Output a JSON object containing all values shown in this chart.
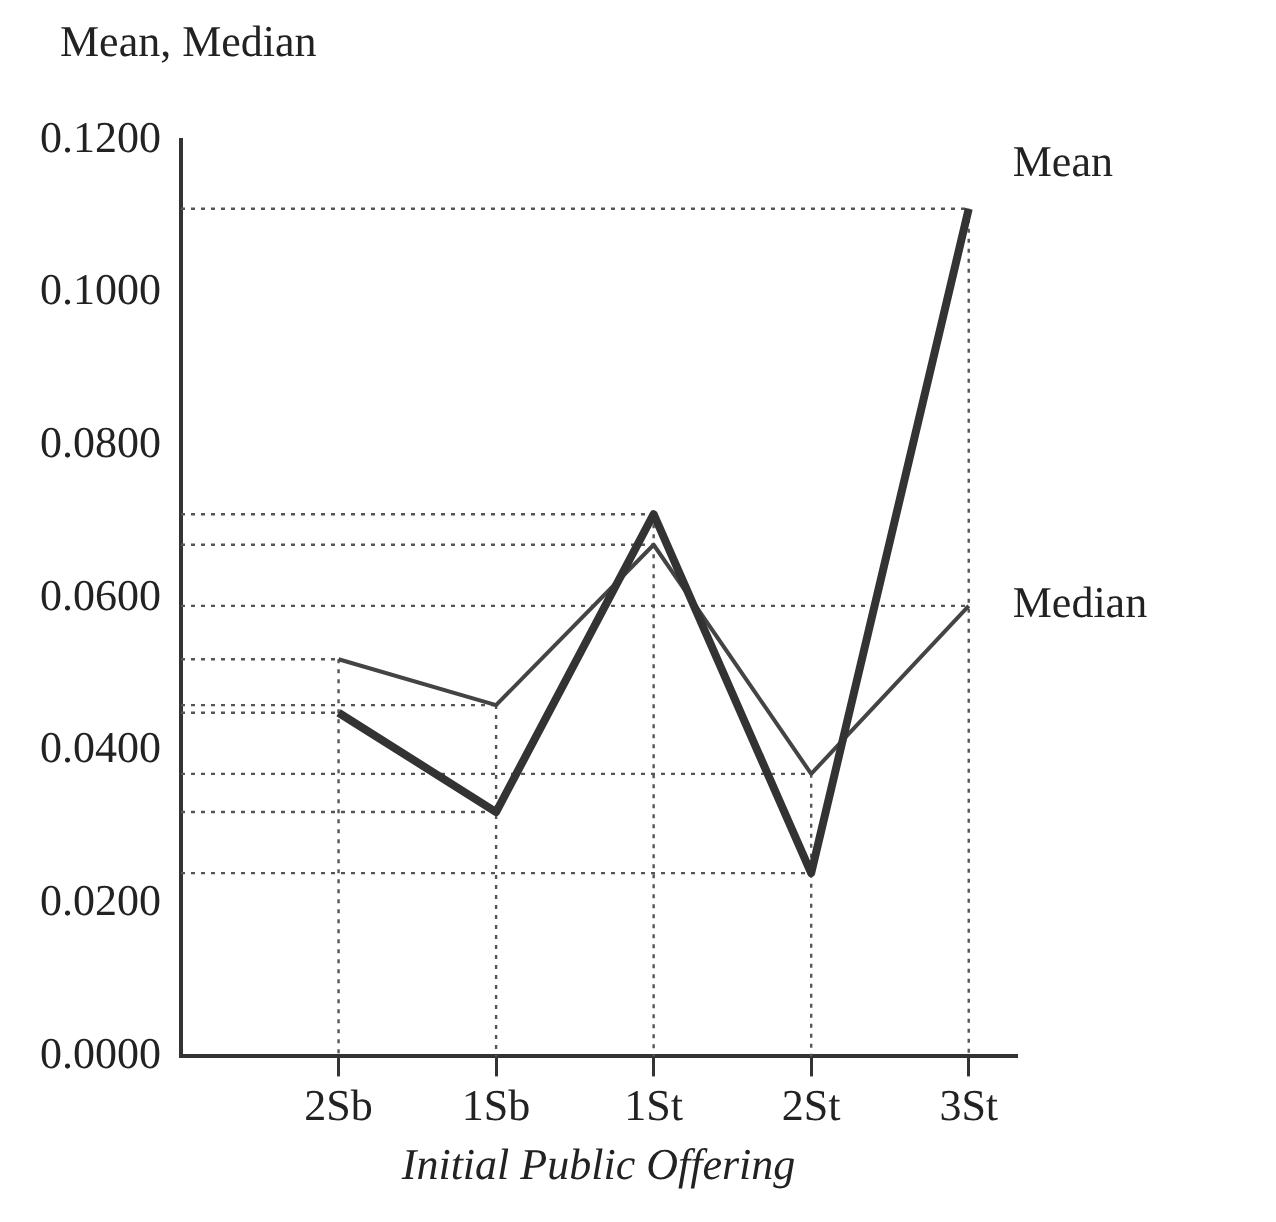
{
  "chart_data": {
    "type": "line",
    "ylabel": "Mean, Median",
    "xlabel": "Initial Public Offering",
    "categories": [
      "2Sb",
      "1Sb",
      "1St",
      "2St",
      "3St"
    ],
    "series": [
      {
        "name": "Mean",
        "color": "#333333",
        "values": [
          0.045,
          0.032,
          0.071,
          0.024,
          0.111
        ]
      },
      {
        "name": "Median",
        "color": "#444444",
        "values": [
          0.052,
          0.046,
          0.067,
          0.037,
          0.059
        ]
      }
    ],
    "ylim": [
      0,
      0.12
    ],
    "yticks": [
      {
        "value": 0,
        "label": "0.0000"
      },
      {
        "value": 0.02,
        "label": "0.0200"
      },
      {
        "value": 0.04,
        "label": "0.0400"
      },
      {
        "value": 0.06,
        "label": "0.0600"
      },
      {
        "value": 0.08,
        "label": "0.0800"
      },
      {
        "value": 0.1,
        "label": "0.1000"
      },
      {
        "value": 0.12,
        "label": "0.1200"
      }
    ],
    "ref_lines": [
      {
        "axis": "y",
        "value": 0.111,
        "line_style": "dotted",
        "color": "#555555"
      },
      {
        "axis": "y",
        "value": 0.071,
        "line_style": "dotted",
        "color": "#555555"
      },
      {
        "axis": "y",
        "value": 0.067,
        "line_style": "dotted",
        "color": "#555555"
      },
      {
        "axis": "y",
        "value": 0.059,
        "line_style": "dotted",
        "color": "#555555"
      },
      {
        "axis": "y",
        "value": 0.052,
        "line_style": "dotted",
        "color": "#555555"
      },
      {
        "axis": "y",
        "value": 0.046,
        "line_style": "dotted",
        "color": "#555555"
      },
      {
        "axis": "y",
        "value": 0.045,
        "line_style": "dotted",
        "color": "#555555"
      },
      {
        "axis": "y",
        "value": 0.037,
        "line_style": "dotted",
        "color": "#555555"
      },
      {
        "axis": "y",
        "value": 0.032,
        "line_style": "dotted",
        "color": "#555555"
      },
      {
        "axis": "y",
        "value": 0.024,
        "line_style": "dotted",
        "color": "#555555"
      },
      {
        "axis": "x",
        "value": "2Sb",
        "line_style": "dotted",
        "color": "#555555"
      },
      {
        "axis": "x",
        "value": "1Sb",
        "line_style": "dotted",
        "color": "#555555"
      },
      {
        "axis": "x",
        "value": "1St",
        "line_style": "dotted",
        "color": "#555555"
      },
      {
        "axis": "x",
        "value": "2St",
        "line_style": "dotted",
        "color": "#555555"
      },
      {
        "axis": "x",
        "value": "3St",
        "line_style": "dotted",
        "color": "#555555"
      }
    ],
    "marker": "none",
    "line_style": "solid",
    "legend": false,
    "grid": false
  }
}
